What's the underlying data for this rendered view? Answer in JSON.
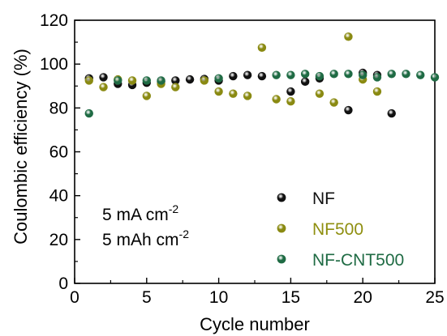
{
  "chart_data": {
    "type": "scatter",
    "xlabel": "Cycle number",
    "ylabel": "Coulombic efficiency (%)",
    "xlim": [
      0,
      25
    ],
    "ylim": [
      0,
      120
    ],
    "xticks": [
      "0",
      "5",
      "10",
      "15",
      "20",
      "25"
    ],
    "yticks": [
      "0",
      "20",
      "40",
      "60",
      "80",
      "100",
      "120"
    ],
    "grid": false,
    "legend_position": "bottom-right",
    "annotations": [
      {
        "text": "5 mA cm",
        "superscript": "-2"
      },
      {
        "text": "5 mAh cm",
        "superscript": "-2"
      }
    ],
    "series": [
      {
        "name": "NF",
        "color": "#111111",
        "label_color": "#111111",
        "points": [
          [
            1,
            93.5
          ],
          [
            2,
            94
          ],
          [
            3,
            91
          ],
          [
            4,
            90.5
          ],
          [
            5,
            91.5
          ],
          [
            6,
            92
          ],
          [
            7,
            92.5
          ],
          [
            8,
            93
          ],
          [
            9,
            93.2
          ],
          [
            10,
            92.5
          ],
          [
            11,
            94.5
          ],
          [
            12,
            95
          ],
          [
            13,
            94.5
          ],
          [
            15,
            87.5
          ],
          [
            16,
            92
          ],
          [
            17,
            93.5
          ],
          [
            19,
            79
          ],
          [
            20,
            96
          ],
          [
            21,
            95
          ],
          [
            22,
            77.5
          ]
        ]
      },
      {
        "name": "NF500",
        "color": "#8a8a12",
        "label_color": "#8f8f10",
        "points": [
          [
            1,
            92.5
          ],
          [
            2,
            89.5
          ],
          [
            3,
            93
          ],
          [
            4,
            92.5
          ],
          [
            5,
            85.5
          ],
          [
            6,
            91
          ],
          [
            7,
            89.5
          ],
          [
            9,
            92.5
          ],
          [
            10,
            87.5
          ],
          [
            11,
            86.5
          ],
          [
            12,
            85.5
          ],
          [
            13,
            107.5
          ],
          [
            14,
            84
          ],
          [
            15,
            83
          ],
          [
            17,
            86.5
          ],
          [
            18,
            82.5
          ],
          [
            19,
            112.5
          ],
          [
            20,
            93
          ],
          [
            21,
            87.5
          ]
        ]
      },
      {
        "name": "NF-CNT500",
        "color": "#1f6b44",
        "label_color": "#1f6b44",
        "points": [
          [
            1,
            77.5
          ],
          [
            3,
            92.5
          ],
          [
            5,
            92.5
          ],
          [
            6,
            92.5
          ],
          [
            10,
            93.5
          ],
          [
            14,
            95
          ],
          [
            15,
            95
          ],
          [
            16,
            95.5
          ],
          [
            17,
            94.5
          ],
          [
            18,
            95.5
          ],
          [
            19,
            95.5
          ],
          [
            20,
            95
          ],
          [
            21,
            94
          ],
          [
            22,
            95.5
          ],
          [
            23,
            95.5
          ],
          [
            24,
            95
          ],
          [
            25,
            94
          ]
        ]
      }
    ]
  }
}
